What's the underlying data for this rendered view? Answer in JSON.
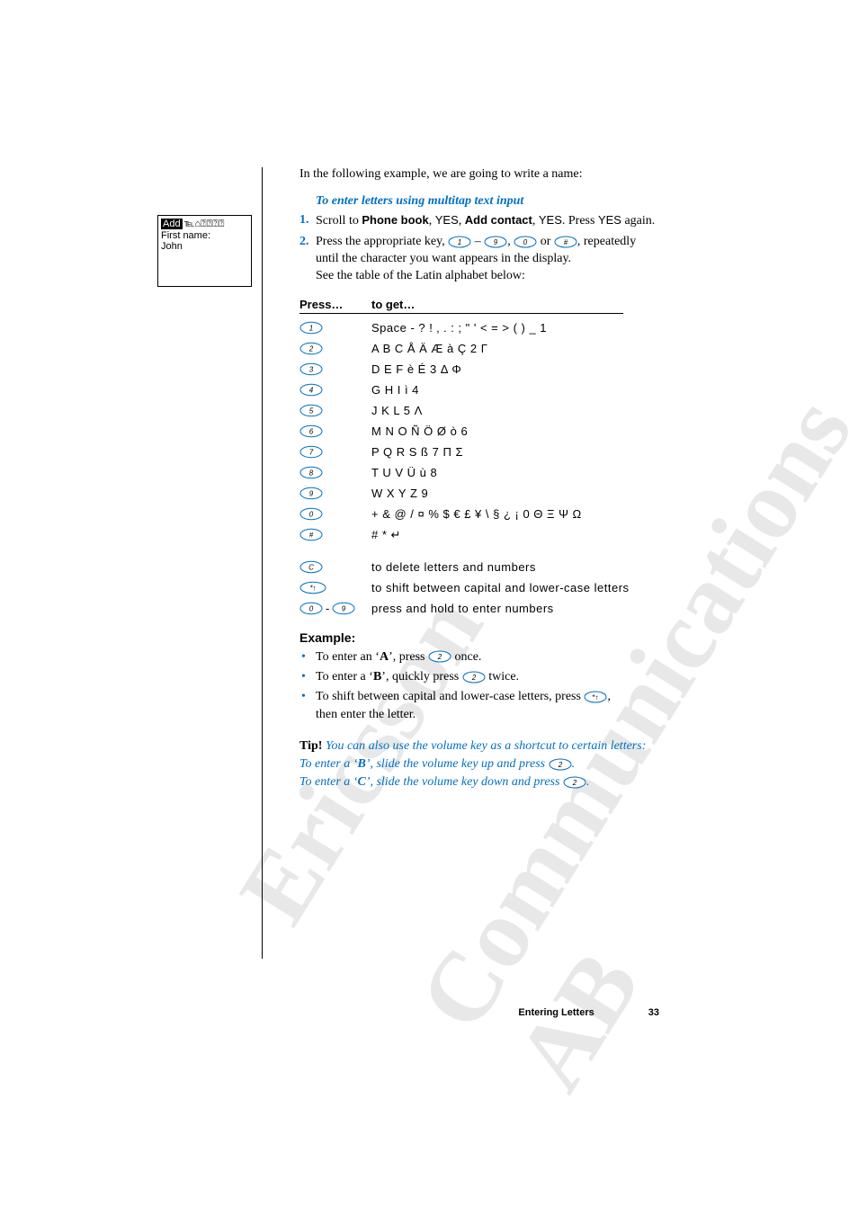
{
  "watermarks": {
    "wm1": "Ericsson",
    "wm2": "Communications AB"
  },
  "sidebar": {
    "add": "Add",
    "suffix": "℡⌂⍰⍰⍰⍰",
    "line2": "First name:",
    "line3": "John"
  },
  "intro": "In the following example, we are going to write a name:",
  "subhead": "To enter letters using multitap text input",
  "steps": {
    "s1_pre": "Scroll to ",
    "s1_pb": "Phone book",
    "s1_yes": "YES",
    "s1_add": "Add contact",
    "s1_again": " again.",
    "s1_press": ". Press ",
    "s2_a": "Press the appropriate key, ",
    "s2_dash": " – ",
    "s2_sep": ", ",
    "s2_or": " or ",
    "s2_rep": ", repeatedly",
    "s2_b": "until the character you want appears in the display.",
    "s2_c": "See the table of the Latin alphabet below:"
  },
  "table": {
    "h1": "Press…",
    "h2": "to get…",
    "rows": [
      {
        "key": "1",
        "val": "Space - ? ! ‚ . : ; \" ' < = > ( ) _ 1"
      },
      {
        "key": "2",
        "val": "A B C Å Ä Æ à Ç 2 Γ"
      },
      {
        "key": "3",
        "val": "D E F è É 3 Δ Φ"
      },
      {
        "key": "4",
        "val": "G H I ì 4"
      },
      {
        "key": "5",
        "val": "J K L 5 Λ"
      },
      {
        "key": "6",
        "val": "M N O Ñ Ö Ø ò 6"
      },
      {
        "key": "7",
        "val": "P Q R S ß 7 Π Σ"
      },
      {
        "key": "8",
        "val": "T U V Ü ù 8"
      },
      {
        "key": "9",
        "val": "W X Y Z 9"
      },
      {
        "key": "0",
        "val": "+ & @ / ¤ % $ € £ ¥ \\ § ¿ ¡ 0 Θ Ξ Ψ Ω"
      },
      {
        "key": "#",
        "val": "# * ↵"
      }
    ],
    "extra": [
      {
        "key": "C",
        "val": "to delete letters and numbers"
      },
      {
        "key": "*",
        "val": "to shift between capital and lower-case letters"
      },
      {
        "key": "0-9",
        "val": "press and hold to enter numbers"
      }
    ]
  },
  "example": {
    "head": "Example:",
    "b1_a": "To enter an ‘",
    "b1_bold": "A",
    "b1_b": "’, press ",
    "b1_c": " once.",
    "b2_a": "To enter a ‘",
    "b2_bold": "B",
    "b2_b": "’, quickly press ",
    "b2_c": " twice.",
    "b3_a": "To shift between capital and lower-case letters, press ",
    "b3_b": ",",
    "b3_c": "then enter the letter."
  },
  "tip": {
    "label": "Tip!",
    "l1": " You can also use the volume key as a shortcut to certain letters:",
    "l2a": "To enter a ‘",
    "l2b": "B",
    "l2c": "’, slide the volume key up and press ",
    "l2d": ".",
    "l3a": "To enter a ‘",
    "l3b": "C",
    "l3c": "’, slide the volume key down and press ",
    "l3d": "."
  },
  "footer": {
    "title": "Entering Letters",
    "pg": "33"
  },
  "keycap_style": {
    "stroke": "#0070c0",
    "fill": "#ffffff",
    "text": "#000000"
  }
}
